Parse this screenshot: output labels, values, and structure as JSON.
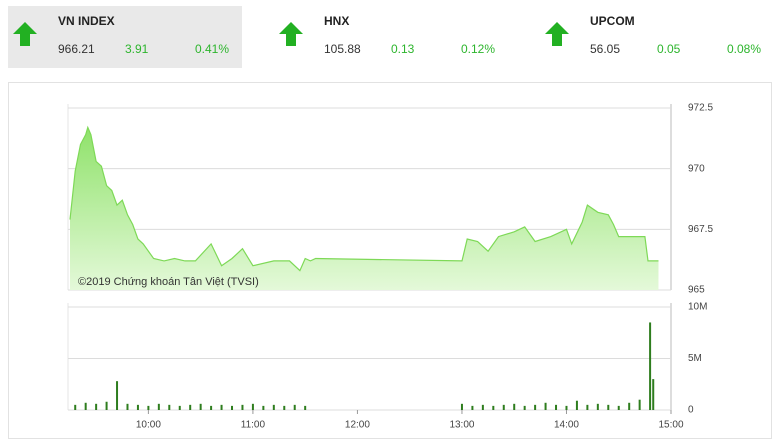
{
  "indices": [
    {
      "name": "VN INDEX",
      "value": 966.21,
      "change": 3.91,
      "percent": "0.41%"
    },
    {
      "name": "HNX",
      "value": 105.88,
      "change": 0.13,
      "percent": "0.12%"
    },
    {
      "name": "UPCOM",
      "value": 56.05,
      "change": 0.05,
      "percent": "0.08%"
    }
  ],
  "chart_data": [
    {
      "type": "area",
      "annotation": "©2019 Chứng khoán Tân Việt (TVSI)",
      "color": "#7ed957",
      "x": [
        9.25,
        9.3,
        9.35,
        9.4,
        9.42,
        9.45,
        9.5,
        9.55,
        9.6,
        9.65,
        9.7,
        9.75,
        9.8,
        9.85,
        9.9,
        9.95,
        10.05,
        10.15,
        10.25,
        10.35,
        10.45,
        10.6,
        10.7,
        10.8,
        10.9,
        11.0,
        11.2,
        11.35,
        11.45,
        11.5,
        11.55,
        11.6,
        13.0,
        13.05,
        13.15,
        13.25,
        13.35,
        13.5,
        13.6,
        13.7,
        13.85,
        14.0,
        14.05,
        14.15,
        14.2,
        14.3,
        14.4,
        14.45,
        14.5,
        14.75,
        14.78,
        14.88
      ],
      "values": [
        967.9,
        969.9,
        971.0,
        971.4,
        971.7,
        971.4,
        970.3,
        970.1,
        969.3,
        969.1,
        968.5,
        968.7,
        968.1,
        967.7,
        967.1,
        966.9,
        966.3,
        966.2,
        966.3,
        966.2,
        966.2,
        966.9,
        966.0,
        966.3,
        966.7,
        966.0,
        966.2,
        966.2,
        965.8,
        966.3,
        966.2,
        966.3,
        966.2,
        967.1,
        967.0,
        966.6,
        967.2,
        967.4,
        967.6,
        967.0,
        967.2,
        967.5,
        966.9,
        967.8,
        968.5,
        968.2,
        968.1,
        967.7,
        967.2,
        967.2,
        966.2,
        966.2
      ],
      "xlim": [
        9.25,
        15
      ],
      "ylim": [
        965,
        972.5
      ],
      "yticks": [
        965,
        967.5,
        970,
        972.5
      ],
      "grid": true
    },
    {
      "type": "bar",
      "color": "#2e7d1e",
      "x": [
        9.3,
        9.4,
        9.5,
        9.6,
        9.7,
        9.8,
        9.9,
        10.0,
        10.1,
        10.2,
        10.3,
        10.4,
        10.5,
        10.6,
        10.7,
        10.8,
        10.9,
        11.0,
        11.1,
        11.2,
        11.3,
        11.4,
        11.5,
        13.0,
        13.1,
        13.2,
        13.3,
        13.4,
        13.5,
        13.6,
        13.7,
        13.8,
        13.9,
        14.0,
        14.1,
        14.2,
        14.3,
        14.4,
        14.5,
        14.6,
        14.7,
        14.8,
        14.83
      ],
      "values": [
        500000,
        700000,
        600000,
        800000,
        2800000,
        600000,
        500000,
        400000,
        600000,
        500000,
        400000,
        500000,
        600000,
        400000,
        500000,
        400000,
        500000,
        600000,
        400000,
        500000,
        400000,
        500000,
        400000,
        600000,
        400000,
        500000,
        400000,
        500000,
        600000,
        400000,
        500000,
        700000,
        500000,
        400000,
        900000,
        500000,
        600000,
        500000,
        400000,
        700000,
        1000000,
        8500000,
        3000000
      ],
      "xlim": [
        9.25,
        15
      ],
      "ylim": [
        0,
        10000000
      ],
      "yticks": [
        0,
        {
          "value": 5000000,
          "label": "5M"
        },
        {
          "value": 10000000,
          "label": "10M"
        }
      ],
      "xticks": [
        {
          "value": 10,
          "label": "10:00"
        },
        {
          "value": 11,
          "label": "11:00"
        },
        {
          "value": 12,
          "label": "12:00"
        },
        {
          "value": 13,
          "label": "13:00"
        },
        {
          "value": 14,
          "label": "14:00"
        },
        {
          "value": 15,
          "label": "15:00"
        }
      ],
      "grid": true
    }
  ]
}
